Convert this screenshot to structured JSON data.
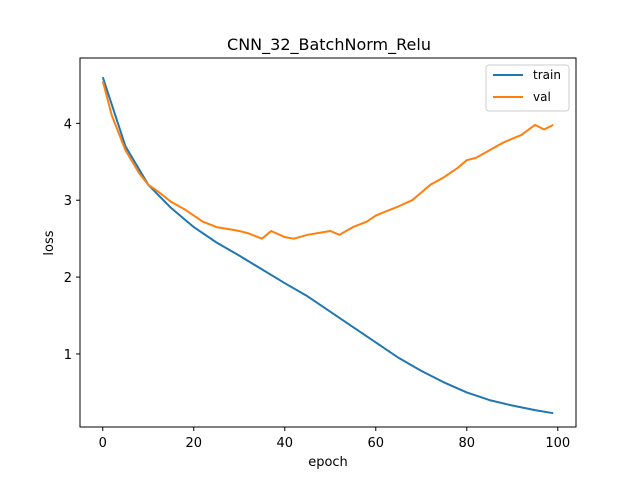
{
  "chart_data": {
    "type": "line",
    "title": "CNN_32_BatchNorm_Relu",
    "xlabel": "epoch",
    "ylabel": "loss",
    "xlim": [
      -5,
      104
    ],
    "ylim": [
      0.05,
      4.85
    ],
    "xticks": [
      0,
      20,
      40,
      60,
      80,
      100
    ],
    "yticks": [
      1,
      2,
      3,
      4
    ],
    "grid": false,
    "legend_position": "top-right",
    "series": [
      {
        "name": "train",
        "color": "#1f77b4",
        "x": [
          0,
          5,
          10,
          15,
          20,
          25,
          30,
          35,
          40,
          45,
          50,
          55,
          60,
          65,
          70,
          75,
          80,
          85,
          90,
          95,
          99
        ],
        "y": [
          4.6,
          3.7,
          3.2,
          2.9,
          2.65,
          2.45,
          2.28,
          2.1,
          1.92,
          1.75,
          1.55,
          1.35,
          1.15,
          0.95,
          0.78,
          0.63,
          0.5,
          0.4,
          0.33,
          0.27,
          0.23
        ]
      },
      {
        "name": "val",
        "color": "#ff7f0e",
        "x": [
          0,
          2,
          5,
          8,
          10,
          12,
          15,
          18,
          20,
          22,
          25,
          28,
          30,
          32,
          35,
          37,
          40,
          42,
          45,
          48,
          50,
          52,
          55,
          58,
          60,
          62,
          65,
          68,
          70,
          72,
          75,
          78,
          80,
          82,
          85,
          88,
          90,
          92,
          95,
          97,
          99
        ],
        "y": [
          4.55,
          4.1,
          3.65,
          3.35,
          3.2,
          3.12,
          2.98,
          2.88,
          2.8,
          2.72,
          2.65,
          2.62,
          2.6,
          2.57,
          2.5,
          2.6,
          2.52,
          2.5,
          2.55,
          2.58,
          2.6,
          2.55,
          2.65,
          2.72,
          2.8,
          2.85,
          2.92,
          3.0,
          3.1,
          3.2,
          3.3,
          3.42,
          3.52,
          3.55,
          3.65,
          3.75,
          3.8,
          3.85,
          3.98,
          3.92,
          3.98
        ]
      }
    ]
  }
}
